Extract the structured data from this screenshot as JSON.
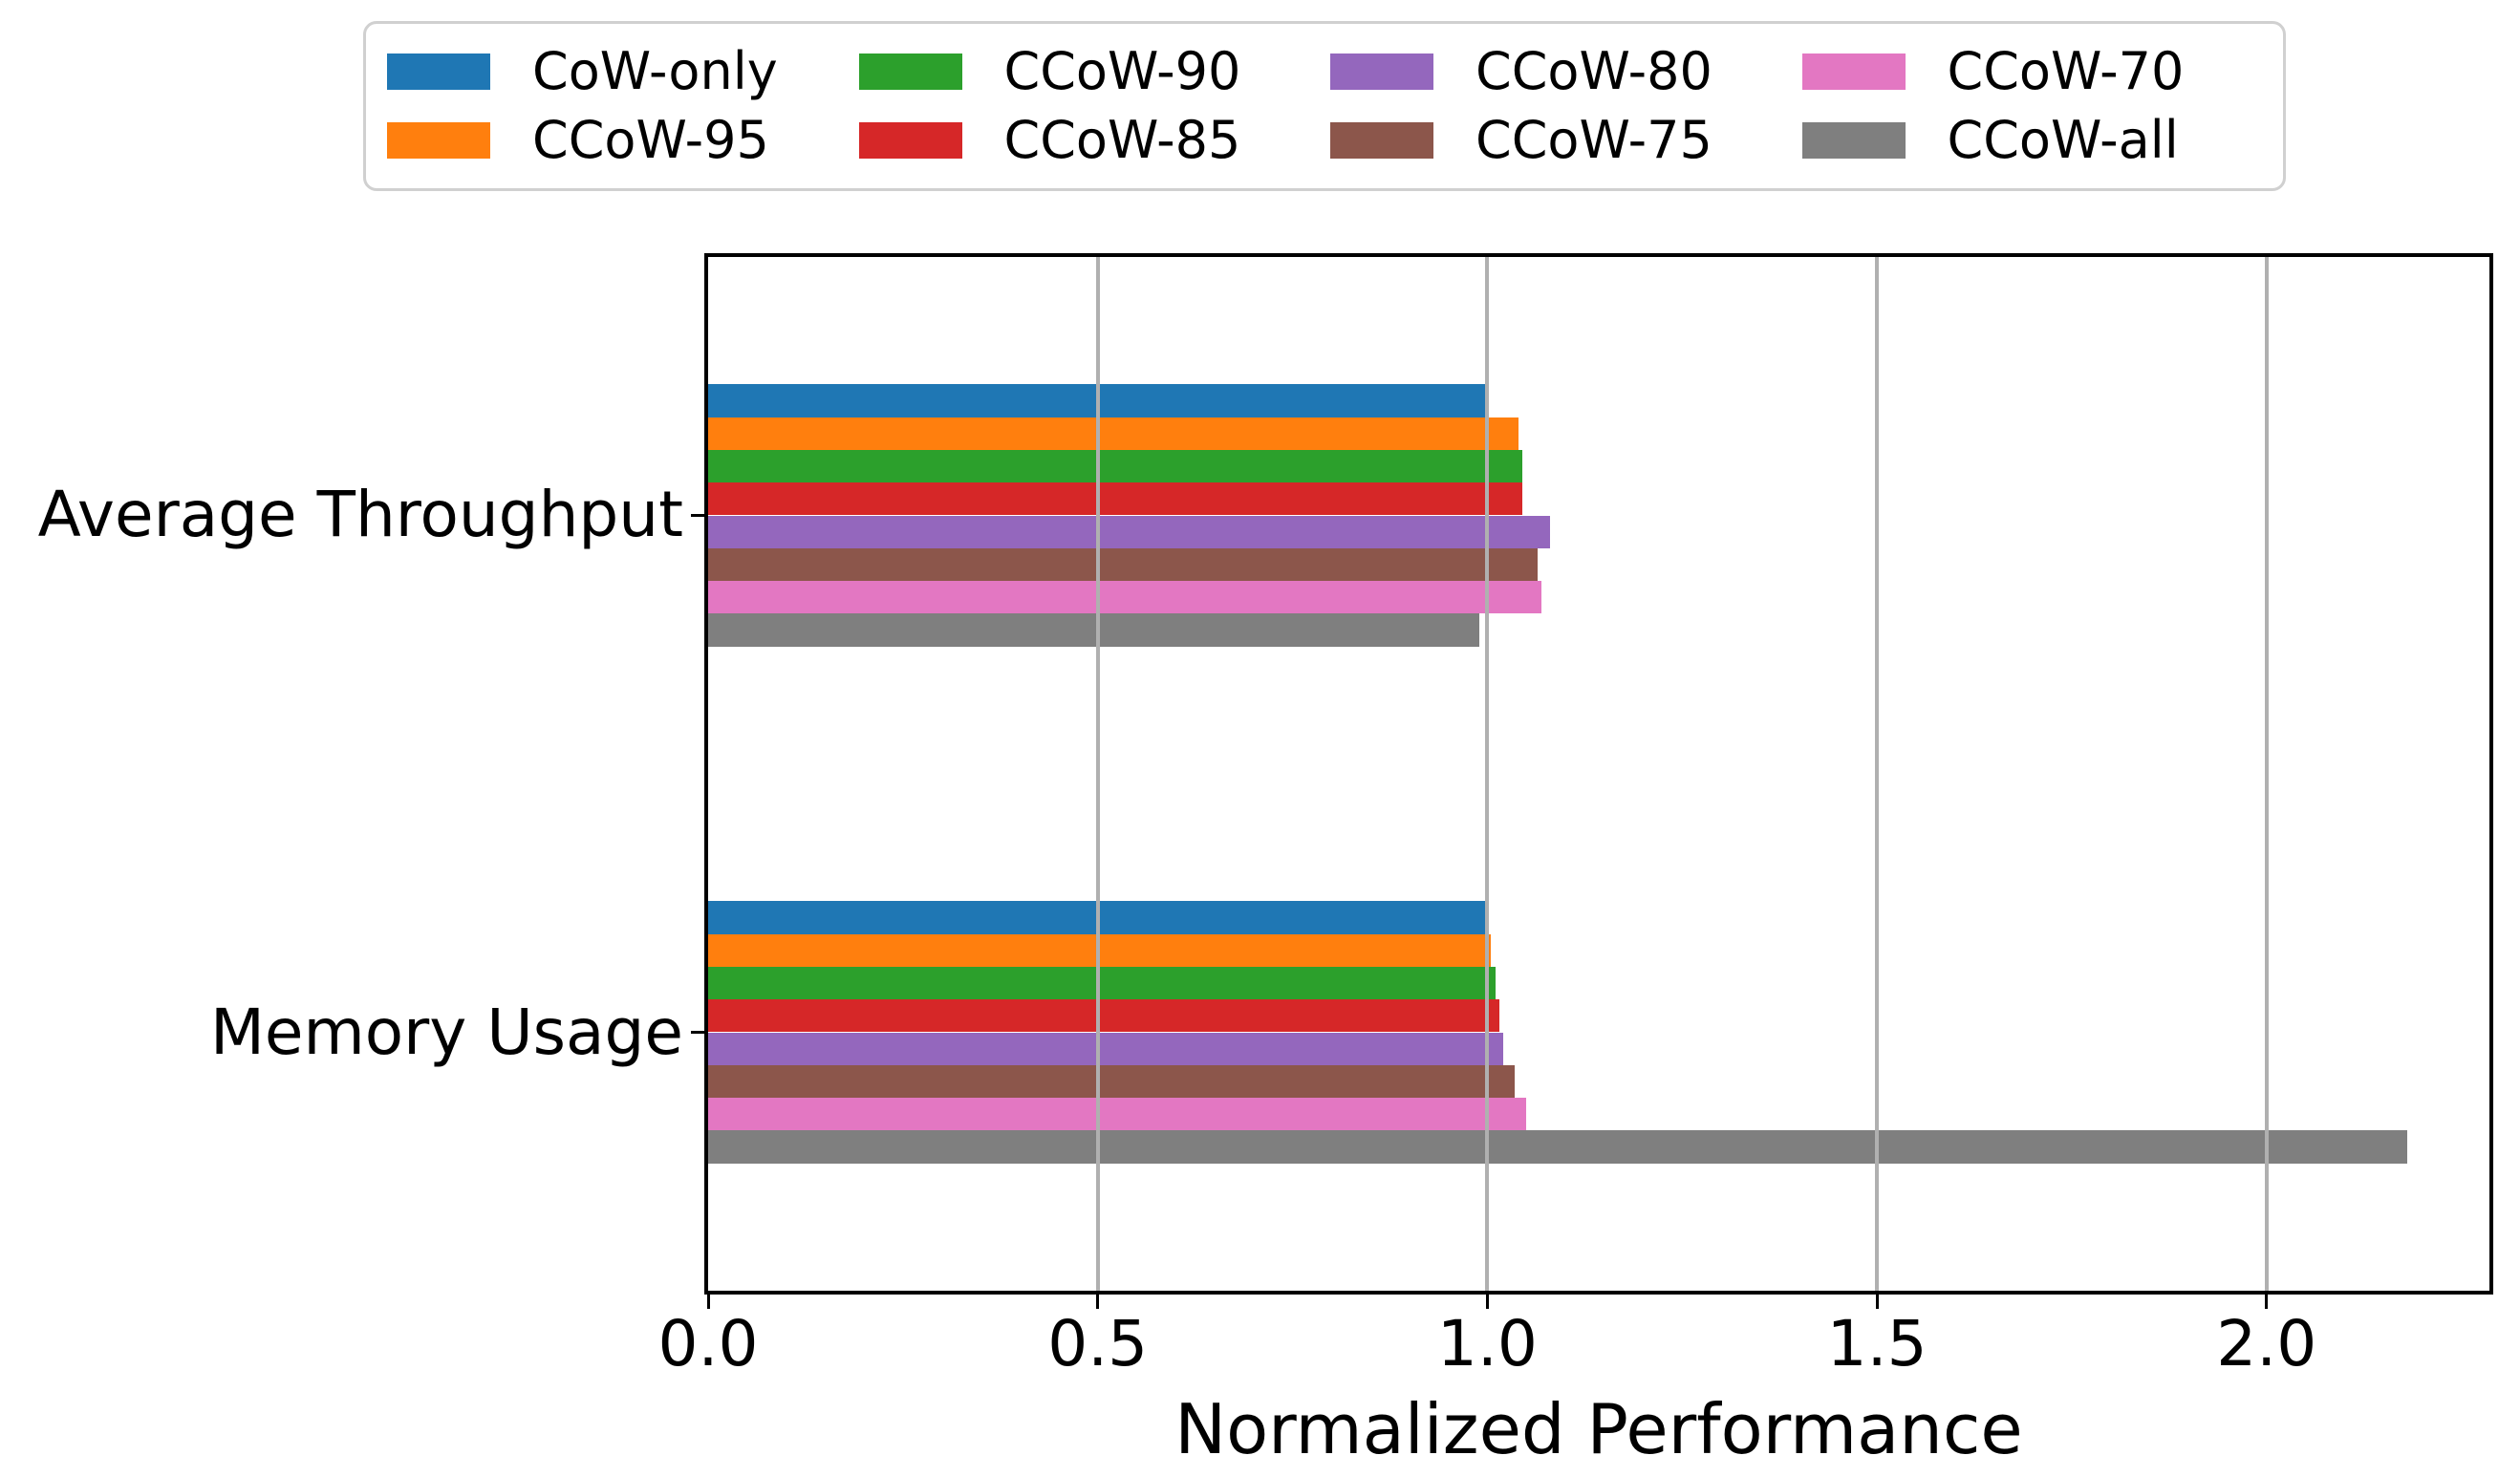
{
  "chart_data": {
    "type": "bar",
    "orientation": "horizontal",
    "title": "",
    "xlabel": "Normalized Performance",
    "ylabel": "",
    "categories": [
      "Average Throughput",
      "Memory Usage"
    ],
    "series": [
      {
        "name": "CoW-only",
        "color": "#1f77b4",
        "values": [
          1.0,
          1.0
        ]
      },
      {
        "name": "CCoW-95",
        "color": "#ff7f0e",
        "values": [
          1.04,
          1.005
        ]
      },
      {
        "name": "CCoW-90",
        "color": "#2ca02c",
        "values": [
          1.045,
          1.01
        ]
      },
      {
        "name": "CCoW-85",
        "color": "#d62728",
        "values": [
          1.045,
          1.015
        ]
      },
      {
        "name": "CCoW-80",
        "color": "#9467bd",
        "values": [
          1.08,
          1.02
        ]
      },
      {
        "name": "CCoW-75",
        "color": "#8c564b",
        "values": [
          1.065,
          1.035
        ]
      },
      {
        "name": "CCoW-70",
        "color": "#e377c2",
        "values": [
          1.07,
          1.05
        ]
      },
      {
        "name": "CCoW-all",
        "color": "#7f7f7f",
        "values": [
          0.99,
          2.18
        ]
      }
    ],
    "xlim": [
      0,
      2.286
    ],
    "xticks": [
      0.0,
      0.5,
      1.0,
      1.5,
      2.0
    ],
    "xtick_labels": [
      "0.0",
      "0.5",
      "1.0",
      "1.5",
      "2.0"
    ],
    "gridline_values": [
      0.5,
      1.0,
      1.5,
      2.0
    ],
    "grid": "vertical",
    "legend_position": "top",
    "legend_columns": 4,
    "colors": {
      "grid": "#b0b0b0",
      "spine": "#000000",
      "text": "#000000",
      "legend_border": "#d0d0d0",
      "background": "#ffffff"
    }
  }
}
